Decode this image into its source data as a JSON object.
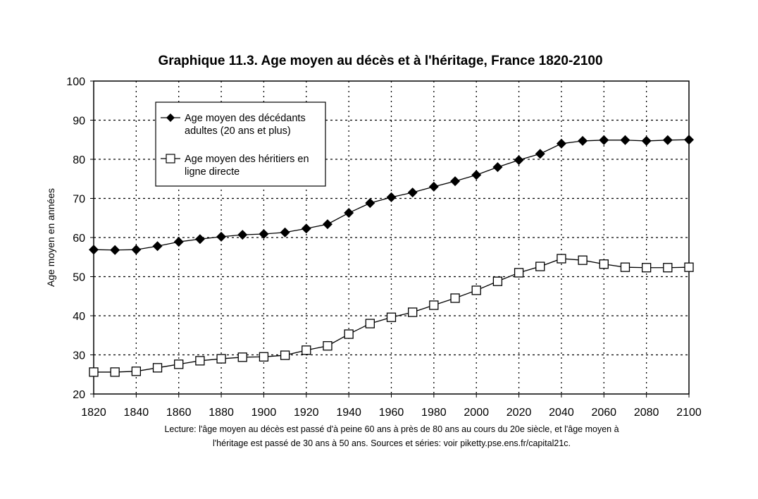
{
  "chart_data": {
    "type": "line",
    "title": "Graphique 11.3. Age moyen au décès et à l'héritage, France 1820-2100",
    "xlabel": "",
    "ylabel": "Age moyen en années",
    "xlim": [
      1820,
      2100
    ],
    "ylim": [
      20,
      100
    ],
    "x_ticks": [
      "1820",
      "1840",
      "1860",
      "1880",
      "1900",
      "1920",
      "1940",
      "1960",
      "1980",
      "2000",
      "2020",
      "2040",
      "2060",
      "2080",
      "2100"
    ],
    "y_ticks": [
      "20",
      "30",
      "40",
      "50",
      "60",
      "70",
      "80",
      "90",
      "100"
    ],
    "grid": true,
    "legend_position": "top-left",
    "x": [
      1820,
      1830,
      1840,
      1850,
      1860,
      1870,
      1880,
      1890,
      1900,
      1910,
      1920,
      1930,
      1940,
      1950,
      1960,
      1970,
      1980,
      1990,
      2000,
      2010,
      2020,
      2030,
      2040,
      2050,
      2060,
      2070,
      2080,
      2090,
      2100
    ],
    "series": [
      {
        "name": "Age moyen des décédants adultes (20 ans et plus)",
        "legend_lines": [
          "Age moyen des décédants",
          "adultes (20 ans et plus)"
        ],
        "marker": "filled-diamond",
        "values": [
          56.9,
          56.8,
          56.9,
          57.8,
          58.9,
          59.6,
          60.2,
          60.7,
          60.9,
          61.3,
          62.3,
          63.4,
          66.3,
          68.8,
          70.3,
          71.5,
          73.0,
          74.4,
          76.0,
          78.0,
          79.8,
          81.4,
          84.0,
          84.7,
          84.9,
          84.9,
          84.7,
          84.9,
          85.0
        ]
      },
      {
        "name": "Age moyen des héritiers en ligne directe",
        "legend_lines": [
          "Age moyen des héritiers en",
          "ligne directe"
        ],
        "marker": "open-square",
        "values": [
          25.6,
          25.6,
          25.8,
          26.7,
          27.6,
          28.5,
          29.0,
          29.4,
          29.5,
          29.9,
          31.2,
          32.3,
          35.3,
          38.0,
          39.6,
          40.9,
          42.7,
          44.5,
          46.5,
          48.8,
          51.0,
          52.6,
          54.6,
          54.2,
          53.2,
          52.4,
          52.3,
          52.3,
          52.4
        ]
      }
    ],
    "note_lines": [
      "Lecture: l'âge moyen au décès est passé d'à peine 60 ans à près de 80 ans au cours du 20e siècle, et l'âge moyen à",
      "l'héritage est passé de 30 ans à 50 ans. Sources et séries: voir piketty.pse.ens.fr/capital21c."
    ]
  }
}
